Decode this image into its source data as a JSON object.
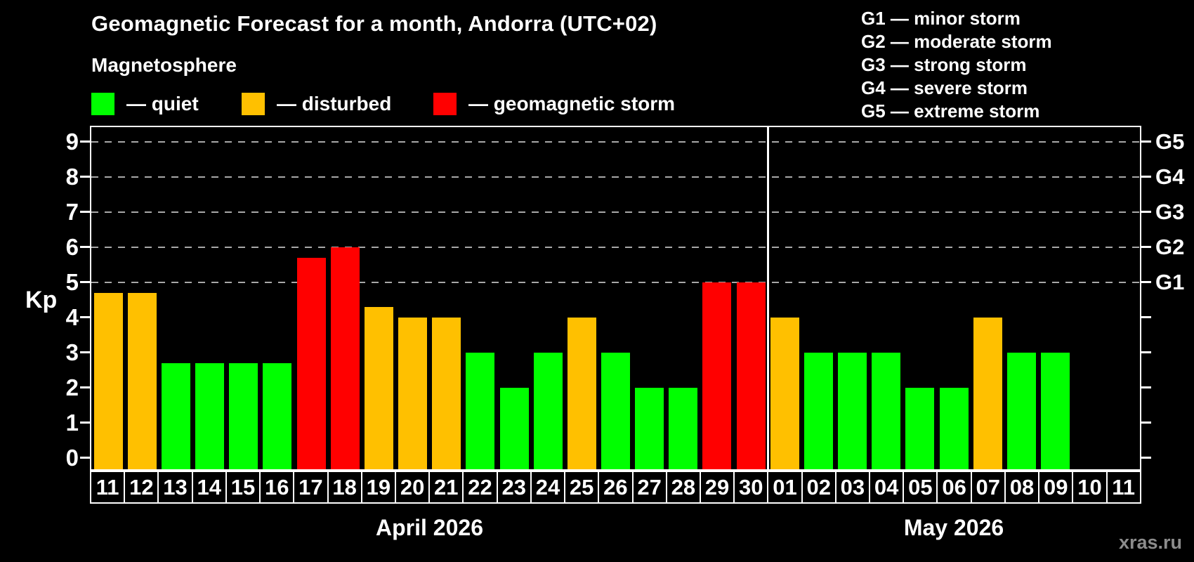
{
  "subtitle": "Magnetosphere",
  "legend": {
    "items": [
      {
        "key": "quiet",
        "label": "— quiet",
        "color": "#00FF00"
      },
      {
        "key": "disturbed",
        "label": "— disturbed",
        "color": "#FFC000"
      },
      {
        "key": "storm",
        "label": "— geomagnetic storm",
        "color": "#FF0000"
      }
    ]
  },
  "g_scale_legend": [
    "G1 — minor storm",
    "G2 — moderate storm",
    "G3 — strong storm",
    "G4 — severe storm",
    "G5 — extreme storm"
  ],
  "watermark": "xras.ru",
  "chart_data": {
    "type": "bar",
    "title": "Geomagnetic Forecast for a month, Andorra (UTC+02)",
    "ylabel": "Kp",
    "ylim": [
      0,
      9
    ],
    "yticks": [
      0,
      1,
      2,
      3,
      4,
      5,
      6,
      7,
      8,
      9
    ],
    "gridlines_at": [
      5,
      6,
      7,
      8,
      9
    ],
    "grid": "dashed, only at storm levels 5-9",
    "legend_position": "top",
    "right_axis": [
      {
        "value": 5,
        "label": "G1"
      },
      {
        "value": 6,
        "label": "G2"
      },
      {
        "value": 7,
        "label": "G3"
      },
      {
        "value": 8,
        "label": "G4"
      },
      {
        "value": 9,
        "label": "G5"
      }
    ],
    "months": [
      {
        "label": "April 2026",
        "points": [
          {
            "day": "11",
            "kp": 4.7,
            "level": "disturbed"
          },
          {
            "day": "12",
            "kp": 4.7,
            "level": "disturbed"
          },
          {
            "day": "13",
            "kp": 2.7,
            "level": "quiet"
          },
          {
            "day": "14",
            "kp": 2.7,
            "level": "quiet"
          },
          {
            "day": "15",
            "kp": 2.7,
            "level": "quiet"
          },
          {
            "day": "16",
            "kp": 2.7,
            "level": "quiet"
          },
          {
            "day": "17",
            "kp": 5.7,
            "level": "storm"
          },
          {
            "day": "18",
            "kp": 6.0,
            "level": "storm"
          },
          {
            "day": "19",
            "kp": 4.3,
            "level": "disturbed"
          },
          {
            "day": "20",
            "kp": 4.0,
            "level": "disturbed"
          },
          {
            "day": "21",
            "kp": 4.0,
            "level": "disturbed"
          },
          {
            "day": "22",
            "kp": 3.0,
            "level": "quiet"
          },
          {
            "day": "23",
            "kp": 2.0,
            "level": "quiet"
          },
          {
            "day": "24",
            "kp": 3.0,
            "level": "quiet"
          },
          {
            "day": "25",
            "kp": 4.0,
            "level": "disturbed"
          },
          {
            "day": "26",
            "kp": 3.0,
            "level": "quiet"
          },
          {
            "day": "27",
            "kp": 2.0,
            "level": "quiet"
          },
          {
            "day": "28",
            "kp": 2.0,
            "level": "quiet"
          },
          {
            "day": "29",
            "kp": 5.0,
            "level": "storm"
          },
          {
            "day": "30",
            "kp": 5.0,
            "level": "storm"
          }
        ]
      },
      {
        "label": "May 2026",
        "points": [
          {
            "day": "01",
            "kp": 4.0,
            "level": "disturbed"
          },
          {
            "day": "02",
            "kp": 3.0,
            "level": "quiet"
          },
          {
            "day": "03",
            "kp": 3.0,
            "level": "quiet"
          },
          {
            "day": "04",
            "kp": 3.0,
            "level": "quiet"
          },
          {
            "day": "05",
            "kp": 2.0,
            "level": "quiet"
          },
          {
            "day": "06",
            "kp": 2.0,
            "level": "quiet"
          },
          {
            "day": "07",
            "kp": 4.0,
            "level": "disturbed"
          },
          {
            "day": "08",
            "kp": 3.0,
            "level": "quiet"
          },
          {
            "day": "09",
            "kp": 3.0,
            "level": "quiet"
          },
          {
            "day": "10",
            "kp": null,
            "level": null
          },
          {
            "day": "11",
            "kp": null,
            "level": null
          }
        ]
      }
    ]
  }
}
